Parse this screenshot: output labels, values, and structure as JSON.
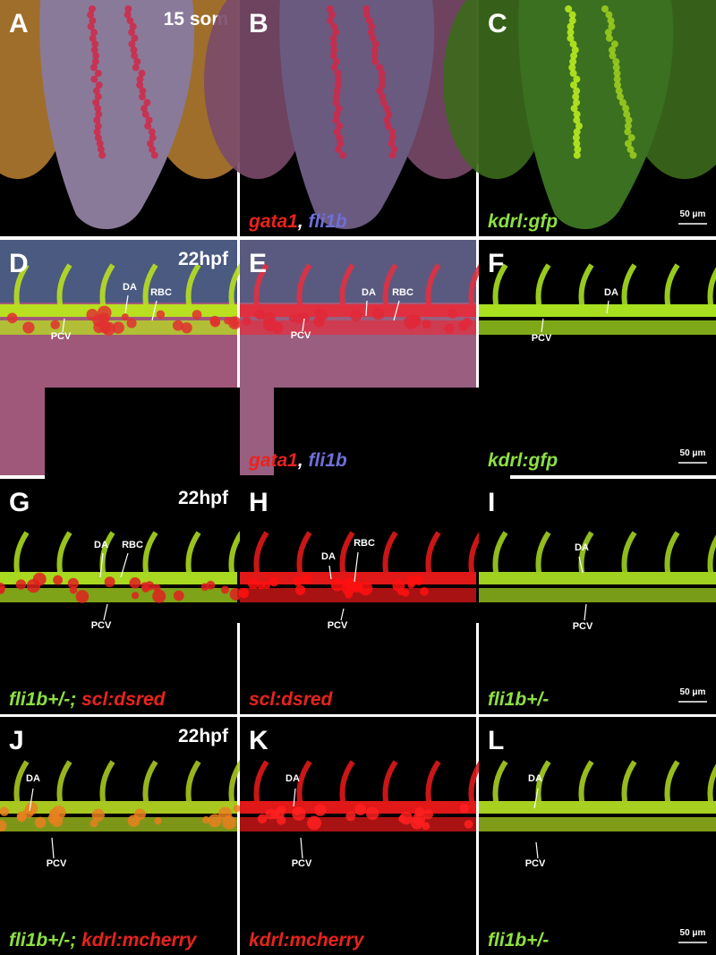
{
  "panels": [
    {
      "letter": "A",
      "stage": "15 som"
    },
    {
      "letter": "B",
      "caption": [
        {
          "text": "gata1",
          "color": "#e8231e"
        },
        {
          "text": ",",
          "color": "#ffffff"
        },
        {
          "text": " fli1b",
          "color": "#6f6fd8"
        }
      ]
    },
    {
      "letter": "C",
      "caption": [
        {
          "text": "kdrl:gfp",
          "color": "#8ee040"
        }
      ],
      "scale": "50 μm"
    },
    {
      "letter": "D",
      "stage": "22hpf",
      "annotations": [
        "DA",
        "RBC",
        "PCV"
      ]
    },
    {
      "letter": "E",
      "annotations": [
        "DA",
        "RBC",
        "PCV"
      ],
      "caption": [
        {
          "text": "gata1",
          "color": "#e8231e"
        },
        {
          "text": ",",
          "color": "#ffffff"
        },
        {
          "text": " fli1b",
          "color": "#6f6fd8"
        }
      ]
    },
    {
      "letter": "F",
      "annotations": [
        "DA",
        "PCV"
      ],
      "caption": [
        {
          "text": "kdrl:gfp",
          "color": "#8ee040"
        }
      ],
      "scale": "50 μm"
    },
    {
      "letter": "G",
      "stage": "22hpf",
      "annotations": [
        "DA",
        "RBC",
        "PCV"
      ],
      "caption": [
        {
          "text": "fli1b+/-;",
          "color": "#8ee040"
        },
        {
          "text": " scl:dsred",
          "color": "#e8231e"
        }
      ]
    },
    {
      "letter": "H",
      "annotations": [
        "DA",
        "RBC",
        "PCV"
      ],
      "caption": [
        {
          "text": "scl:dsred",
          "color": "#e8231e"
        }
      ]
    },
    {
      "letter": "I",
      "annotations": [
        "DA",
        "PCV"
      ],
      "caption": [
        {
          "text": "fli1b+/-",
          "color": "#8ee040"
        }
      ],
      "scale": "50 μm"
    },
    {
      "letter": "J",
      "stage": "22hpf",
      "annotations": [
        "DA",
        "PCV"
      ],
      "caption": [
        {
          "text": "fli1b+/-;",
          "color": "#8ee040"
        },
        {
          "text": " kdrl:mcherry",
          "color": "#e8231e"
        }
      ]
    },
    {
      "letter": "K",
      "annotations": [
        "DA",
        "PCV"
      ],
      "caption": [
        {
          "text": "kdrl:mcherry",
          "color": "#e8231e"
        }
      ]
    },
    {
      "letter": "L",
      "annotations": [
        "DA",
        "PCV"
      ],
      "caption": [
        {
          "text": "fli1b+/-",
          "color": "#8ee040"
        }
      ],
      "scale": "50 μm"
    }
  ]
}
